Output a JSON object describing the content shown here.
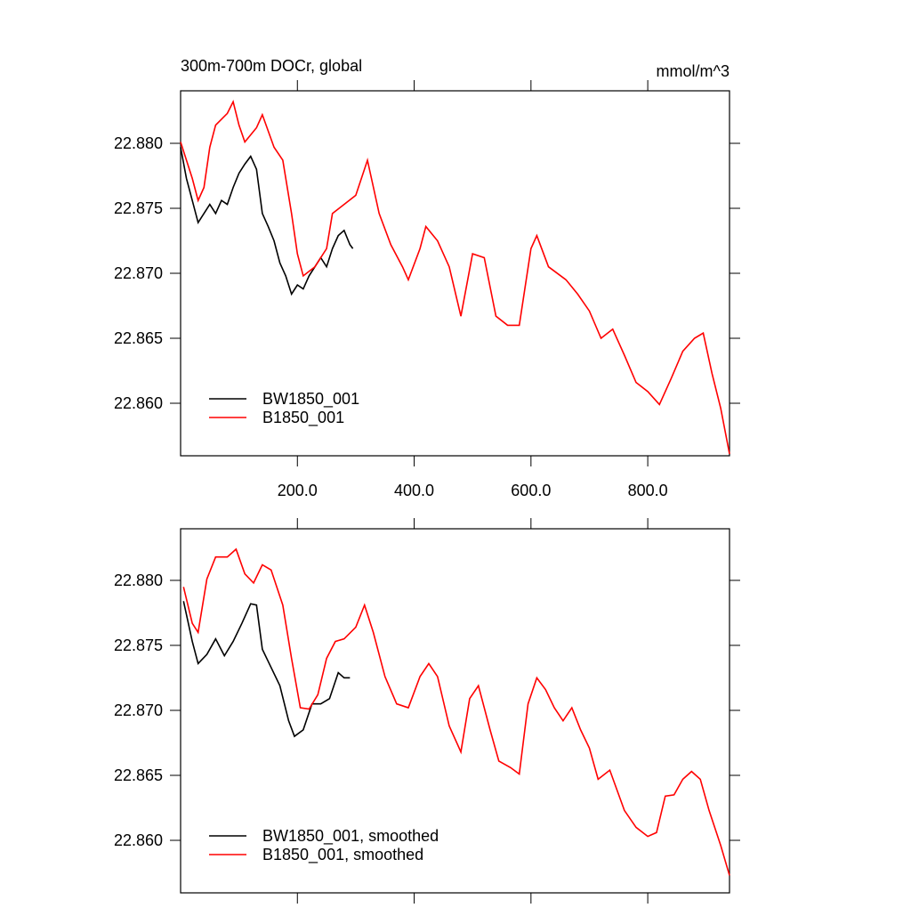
{
  "chart_data": [
    {
      "type": "line",
      "title": "300m-700m DOCr, global",
      "units": "mmol/m^3",
      "xlim": [
        0,
        940
      ],
      "ylim": [
        22.85596,
        22.88404
      ],
      "xticks": [
        {
          "value": 200,
          "label": "200.0"
        },
        {
          "value": 400,
          "label": "400.0"
        },
        {
          "value": 600,
          "label": "600.0"
        },
        {
          "value": 800,
          "label": "800.0"
        }
      ],
      "yticks": [
        {
          "value": 22.86,
          "label": "22.860"
        },
        {
          "value": 22.865,
          "label": "22.865"
        },
        {
          "value": 22.87,
          "label": "22.870"
        },
        {
          "value": 22.875,
          "label": "22.875"
        },
        {
          "value": 22.88,
          "label": "22.880"
        }
      ],
      "legend": "lower left",
      "series": [
        {
          "name": "BW1850_001",
          "color": "#000000",
          "x": [
            0,
            10,
            20,
            30,
            40,
            50,
            60,
            70,
            80,
            90,
            100,
            110,
            120,
            130,
            140,
            150,
            160,
            170,
            180,
            190,
            200,
            210,
            220,
            230,
            240,
            250,
            260,
            270,
            280,
            290,
            295
          ],
          "values": [
            22.8797,
            22.8773,
            22.8756,
            22.8739,
            22.8746,
            22.8753,
            22.8746,
            22.8756,
            22.8753,
            22.8766,
            22.8777,
            22.8784,
            22.879,
            22.878,
            22.8746,
            22.8736,
            22.8725,
            22.8708,
            22.8698,
            22.8684,
            22.8691,
            22.8688,
            22.8698,
            22.8705,
            22.8712,
            22.8705,
            22.8719,
            22.8729,
            22.8733,
            22.8722,
            22.8719
          ]
        },
        {
          "name": "B1850_001",
          "color": "#ff0000",
          "x": [
            0,
            20,
            30,
            40,
            50,
            60,
            80,
            90,
            100,
            110,
            130,
            140,
            160,
            175,
            190,
            200,
            210,
            230,
            250,
            260,
            280,
            300,
            320,
            340,
            360,
            380,
            390,
            410,
            420,
            440,
            460,
            480,
            500,
            520,
            540,
            560,
            580,
            600,
            610,
            630,
            660,
            680,
            700,
            720,
            740,
            760,
            780,
            800,
            820,
            840,
            860,
            880,
            895,
            910,
            925,
            940
          ],
          "values": [
            22.8801,
            22.8773,
            22.8756,
            22.8766,
            22.8797,
            22.8814,
            22.8823,
            22.8832,
            22.8814,
            22.8801,
            22.8812,
            22.8822,
            22.8797,
            22.8787,
            22.8746,
            22.8715,
            22.8698,
            22.8705,
            22.8719,
            22.8746,
            22.8753,
            22.876,
            22.8787,
            22.8746,
            22.8722,
            22.8705,
            22.8695,
            22.8719,
            22.8736,
            22.8725,
            22.8705,
            22.8667,
            22.8715,
            22.8712,
            22.8667,
            22.866,
            22.866,
            22.8719,
            22.8729,
            22.8705,
            22.8695,
            22.8684,
            22.8671,
            22.865,
            22.8657,
            22.8637,
            22.8616,
            22.8609,
            22.8599,
            22.8619,
            22.864,
            22.865,
            22.8654,
            22.8623,
            22.8596,
            22.8561
          ]
        }
      ]
    },
    {
      "type": "line",
      "xlim": [
        0,
        940
      ],
      "ylim": [
        22.85596,
        22.88397
      ],
      "xticks": [
        200,
        400,
        600,
        800
      ],
      "yticks": [
        {
          "value": 22.86,
          "label": "22.860"
        },
        {
          "value": 22.865,
          "label": "22.865"
        },
        {
          "value": 22.87,
          "label": "22.870"
        },
        {
          "value": 22.875,
          "label": "22.875"
        },
        {
          "value": 22.88,
          "label": "22.880"
        }
      ],
      "legend": "lower left",
      "series": [
        {
          "name": "BW1850_001, smoothed",
          "color": "#000000",
          "x": [
            5,
            20,
            30,
            45,
            60,
            75,
            90,
            105,
            120,
            130,
            140,
            155,
            170,
            185,
            195,
            210,
            225,
            240,
            255,
            270,
            280,
            290
          ],
          "values": [
            22.8784,
            22.8753,
            22.8736,
            22.8743,
            22.8755,
            22.8742,
            22.8753,
            22.8767,
            22.8782,
            22.8781,
            22.8747,
            22.8733,
            22.8719,
            22.8692,
            22.868,
            22.8685,
            22.8705,
            22.8705,
            22.8709,
            22.8729,
            22.8725,
            22.8725
          ]
        },
        {
          "name": "B1850_001, smoothed",
          "color": "#ff0000",
          "x": [
            5,
            20,
            30,
            45,
            60,
            80,
            95,
            110,
            125,
            140,
            155,
            175,
            190,
            205,
            220,
            235,
            250,
            265,
            280,
            300,
            315,
            330,
            350,
            370,
            390,
            410,
            425,
            440,
            460,
            480,
            495,
            510,
            530,
            545,
            565,
            580,
            595,
            610,
            625,
            640,
            655,
            670,
            685,
            700,
            715,
            735,
            760,
            780,
            800,
            815,
            830,
            845,
            860,
            875,
            890,
            905,
            925,
            940
          ],
          "values": [
            22.8795,
            22.8767,
            22.876,
            22.8801,
            22.8818,
            22.8818,
            22.8824,
            22.8805,
            22.8798,
            22.8812,
            22.8808,
            22.8781,
            22.874,
            22.8702,
            22.8701,
            22.8712,
            22.874,
            22.8753,
            22.8755,
            22.8764,
            22.8781,
            22.876,
            22.8726,
            22.8705,
            22.8702,
            22.8726,
            22.8736,
            22.8726,
            22.8688,
            22.8668,
            22.8709,
            22.8719,
            22.8685,
            22.8661,
            22.8656,
            22.8651,
            22.8705,
            22.8725,
            22.8716,
            22.8702,
            22.8692,
            22.8702,
            22.8685,
            22.8671,
            22.8647,
            22.8654,
            22.8623,
            22.861,
            22.8603,
            22.8606,
            22.8634,
            22.8635,
            22.8647,
            22.8653,
            22.8647,
            22.8623,
            22.8596,
            22.8573
          ]
        }
      ]
    }
  ]
}
